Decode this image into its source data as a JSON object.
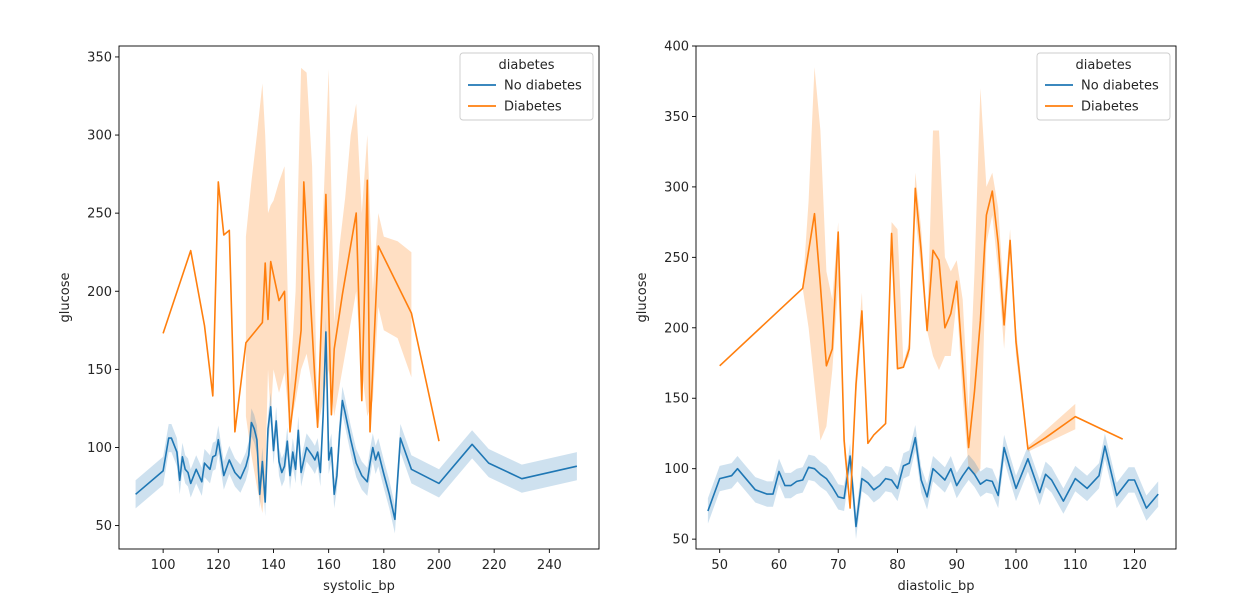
{
  "colors": {
    "no_diabetes": "#1f77b4",
    "diabetes": "#ff7f0e",
    "no_diabetes_band": "#1f77b4",
    "diabetes_band": "#ff7f0e"
  },
  "chart_data": [
    {
      "type": "line",
      "xlabel": "systolic_bp",
      "ylabel": "glucose",
      "xlim": [
        84,
        258
      ],
      "ylim": [
        35,
        357
      ],
      "xticks": [
        100,
        120,
        140,
        160,
        180,
        200,
        220,
        240
      ],
      "yticks": [
        50,
        100,
        150,
        200,
        250,
        300,
        350
      ],
      "legend": {
        "title": "diabetes",
        "position": "top-right"
      },
      "series": [
        {
          "name": "No diabetes",
          "color": "#1f77b4",
          "x": [
            90,
            100,
            102,
            103,
            105,
            106,
            107,
            108,
            109,
            110,
            112,
            114,
            115,
            117,
            118,
            119,
            120,
            122,
            124,
            126,
            128,
            130,
            131,
            132,
            133,
            134,
            135,
            136,
            137,
            138,
            139,
            140,
            141,
            142,
            143,
            144,
            145,
            146,
            147,
            148,
            149,
            150,
            152,
            154,
            155,
            156,
            157,
            158,
            159,
            160,
            161,
            162,
            163,
            164,
            165,
            166,
            168,
            170,
            172,
            174,
            175,
            176,
            177,
            178,
            180,
            182,
            184,
            186,
            190,
            200,
            212,
            218,
            230,
            250
          ],
          "y": [
            70,
            85,
            106,
            106,
            97,
            79,
            94,
            86,
            84,
            77,
            86,
            78,
            90,
            86,
            94,
            95,
            105,
            82,
            92,
            84,
            80,
            88,
            95,
            116,
            112,
            105,
            70,
            91,
            65,
            112,
            126,
            98,
            117,
            91,
            84,
            88,
            104,
            82,
            97,
            86,
            111,
            84,
            100,
            95,
            92,
            97,
            84,
            120,
            174,
            92,
            100,
            70,
            82,
            110,
            130,
            122,
            105,
            90,
            82,
            78,
            90,
            100,
            92,
            97,
            83,
            70,
            54,
            106,
            86,
            77,
            102,
            90,
            80,
            88
          ]
        },
        {
          "name": "Diabetes",
          "color": "#ff7f0e",
          "x": [
            100,
            110,
            115,
            118,
            120,
            122,
            124,
            126,
            130,
            136,
            137,
            138,
            139,
            142,
            144,
            146,
            150,
            151,
            156,
            159,
            161,
            162,
            165,
            170,
            172,
            174,
            175,
            178,
            190,
            200
          ],
          "y": [
            173,
            226,
            178,
            133,
            270,
            236,
            239,
            110,
            167,
            180,
            218,
            182,
            219,
            194,
            200,
            110,
            175,
            270,
            113,
            262,
            121,
            163,
            198,
            250,
            130,
            271,
            110,
            229,
            186,
            104
          ],
          "band_x": [
            130,
            132,
            134,
            136,
            137,
            138,
            139,
            140,
            142,
            144,
            146,
            148,
            150,
            152,
            154,
            156,
            158,
            160,
            162,
            164,
            166,
            168,
            170,
            172,
            174,
            176,
            178,
            180,
            185,
            190
          ],
          "band_low": [
            120,
            95,
            75,
            58,
            80,
            150,
            120,
            150,
            135,
            148,
            112,
            130,
            150,
            160,
            140,
            112,
            130,
            150,
            120,
            140,
            160,
            180,
            200,
            150,
            120,
            130,
            190,
            175,
            170,
            145
          ],
          "band_high": [
            235,
            270,
            300,
            333,
            300,
            250,
            255,
            258,
            270,
            280,
            140,
            200,
            343,
            340,
            280,
            115,
            250,
            342,
            180,
            230,
            260,
            300,
            320,
            250,
            300,
            200,
            250,
            235,
            232,
            225
          ]
        }
      ]
    },
    {
      "type": "line",
      "xlabel": "diastolic_bp",
      "ylabel": "glucose",
      "xlim": [
        46,
        127
      ],
      "ylim": [
        43,
        400
      ],
      "xticks": [
        50,
        60,
        70,
        80,
        90,
        100,
        110,
        120
      ],
      "yticks": [
        50,
        100,
        150,
        200,
        250,
        300,
        350,
        400
      ],
      "legend": {
        "title": "diabetes",
        "position": "top-right"
      },
      "series": [
        {
          "name": "No diabetes",
          "color": "#1f77b4",
          "x": [
            48,
            50,
            52,
            53,
            54,
            56,
            58,
            59,
            60,
            61,
            62,
            63,
            64,
            65,
            66,
            67,
            68,
            69,
            70,
            71,
            72,
            73,
            74,
            75,
            76,
            77,
            78,
            79,
            80,
            81,
            82,
            83,
            84,
            85,
            86,
            87,
            88,
            89,
            90,
            91,
            92,
            93,
            94,
            95,
            96,
            97,
            98,
            99,
            100,
            102,
            104,
            105,
            106,
            108,
            110,
            112,
            114,
            115,
            117,
            119,
            120,
            122,
            124
          ],
          "y": [
            70,
            93,
            95,
            100,
            95,
            85,
            82,
            82,
            98,
            88,
            88,
            91,
            92,
            101,
            100,
            96,
            93,
            87,
            80,
            79,
            109,
            59,
            93,
            90,
            85,
            88,
            93,
            92,
            86,
            102,
            104,
            122,
            92,
            80,
            100,
            96,
            92,
            100,
            88,
            95,
            101,
            96,
            89,
            92,
            91,
            81,
            115,
            100,
            86,
            107,
            83,
            96,
            92,
            77,
            93,
            86,
            95,
            116,
            81,
            92,
            92,
            72,
            82
          ]
        },
        {
          "name": "Diabetes",
          "color": "#ff7f0e",
          "x": [
            50,
            64,
            66,
            67,
            68,
            69,
            70,
            71,
            72,
            73,
            74,
            75,
            76,
            78,
            79,
            80,
            81,
            82,
            83,
            84,
            85,
            86,
            87,
            88,
            89,
            90,
            92,
            93,
            94,
            95,
            96,
            97,
            98,
            99,
            100,
            102,
            105,
            110,
            118
          ],
          "y": [
            173,
            228,
            281,
            230,
            173,
            185,
            268,
            120,
            72,
            160,
            212,
            118,
            124,
            132,
            267,
            171,
            172,
            185,
            299,
            254,
            198,
            255,
            248,
            200,
            210,
            233,
            115,
            155,
            205,
            280,
            297,
            260,
            202,
            262,
            190,
            114,
            122,
            137,
            121
          ],
          "band_x": [
            64,
            65,
            66,
            67,
            68,
            69,
            70,
            71,
            72,
            73,
            74,
            75,
            76,
            78,
            79,
            80,
            81,
            82,
            83,
            84,
            85,
            86,
            87,
            88,
            89,
            90,
            91,
            92,
            93,
            94,
            95,
            96,
            97,
            98,
            99,
            100,
            102,
            110
          ],
          "band_low": [
            228,
            200,
            160,
            120,
            130,
            170,
            230,
            130,
            72,
            150,
            200,
            118,
            124,
            132,
            260,
            171,
            172,
            180,
            280,
            240,
            198,
            180,
            170,
            180,
            180,
            220,
            150,
            100,
            95,
            100,
            260,
            280,
            240,
            185,
            255,
            180,
            112,
            128
          ],
          "band_high": [
            228,
            290,
            385,
            340,
            240,
            220,
            275,
            110,
            72,
            170,
            225,
            118,
            124,
            132,
            275,
            270,
            175,
            190,
            310,
            270,
            198,
            340,
            340,
            250,
            240,
            248,
            220,
            140,
            240,
            370,
            300,
            310,
            285,
            220,
            270,
            200,
            116,
            146
          ]
        }
      ]
    }
  ]
}
